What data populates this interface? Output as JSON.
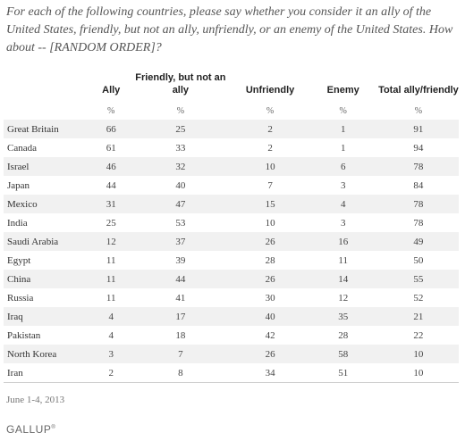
{
  "question": "For each of the following countries, please say whether you consider it an ally of the United States, friendly, but not an ally, unfriendly, or an enemy of the United States. How about -- [RANDOM ORDER]?",
  "table": {
    "headers": {
      "country": "",
      "ally": "Ally",
      "friendly": "Friendly, but not an ally",
      "unfriendly": "Unfriendly",
      "enemy": "Enemy",
      "total": "Total ally/friendly"
    },
    "units": [
      "",
      "%",
      "%",
      "%",
      "%",
      "%"
    ],
    "rows": [
      [
        "Great Britain",
        "66",
        "25",
        "2",
        "1",
        "91"
      ],
      [
        "Canada",
        "61",
        "33",
        "2",
        "1",
        "94"
      ],
      [
        "Israel",
        "46",
        "32",
        "10",
        "6",
        "78"
      ],
      [
        "Japan",
        "44",
        "40",
        "7",
        "3",
        "84"
      ],
      [
        "Mexico",
        "31",
        "47",
        "15",
        "4",
        "78"
      ],
      [
        "India",
        "25",
        "53",
        "10",
        "3",
        "78"
      ],
      [
        "Saudi Arabia",
        "12",
        "37",
        "26",
        "16",
        "49"
      ],
      [
        "Egypt",
        "11",
        "39",
        "28",
        "11",
        "50"
      ],
      [
        "China",
        "11",
        "44",
        "26",
        "14",
        "55"
      ],
      [
        "Russia",
        "11",
        "41",
        "30",
        "12",
        "52"
      ],
      [
        "Iraq",
        "4",
        "17",
        "40",
        "35",
        "21"
      ],
      [
        "Pakistan",
        "4",
        "18",
        "42",
        "28",
        "22"
      ],
      [
        "North Korea",
        "3",
        "7",
        "26",
        "58",
        "10"
      ],
      [
        "Iran",
        "2",
        "8",
        "34",
        "51",
        "10"
      ]
    ]
  },
  "date": "June 1-4, 2013",
  "source": "GALLUP",
  "source_mark": "®"
}
